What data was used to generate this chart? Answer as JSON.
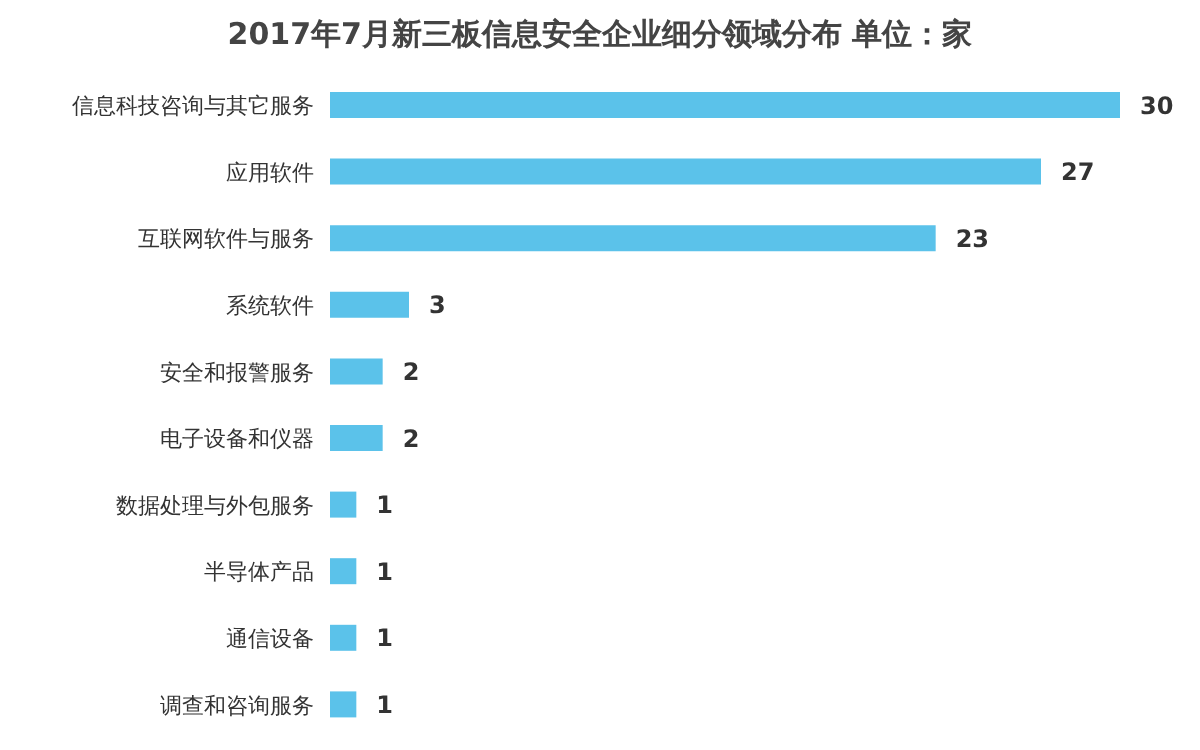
{
  "chart_data": {
    "type": "bar",
    "orientation": "horizontal",
    "title": "2017年7月新三板信息安全企业细分领域分布 单位：家",
    "categories": [
      "信息科技咨询与其它服务",
      "应用软件",
      "互联网软件与服务",
      "系统软件",
      "安全和报警服务",
      "电子设备和仪器",
      "数据处理与外包服务",
      "半导体产品",
      "通信设备",
      "调查和咨询服务"
    ],
    "values": [
      30,
      27,
      23,
      3,
      2,
      2,
      1,
      1,
      1,
      1
    ],
    "color": "#5bc2ea",
    "data_labels": true,
    "tick_labels": "y"
  }
}
